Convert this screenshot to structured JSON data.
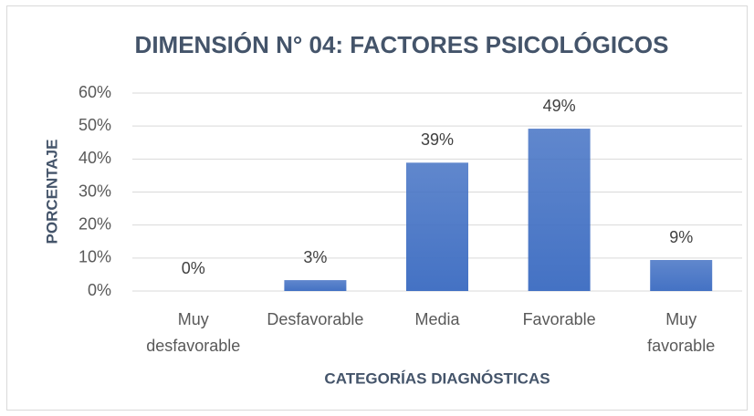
{
  "chart_data": {
    "type": "bar",
    "title": "DIMENSIÓN N° 04: FACTORES PSICOLÓGICOS",
    "x_label": "CATEGORÍAS DIAGNÓSTICAS",
    "y_label": "PORCENTAJE",
    "categories": [
      "Muy desfavorable",
      "Desfavorable",
      "Media",
      "Favorable",
      "Muy favorable"
    ],
    "values": [
      0,
      3.3,
      38.9,
      49.2,
      9.4
    ],
    "value_labels": [
      "0%",
      "3%",
      "39%",
      "49%",
      "9%"
    ],
    "color": "#4472c4",
    "ylim": [
      0,
      60
    ],
    "yticks": [
      {
        "value": 0,
        "label": "0%"
      },
      {
        "value": 10,
        "label": "10%"
      },
      {
        "value": 20,
        "label": "20%"
      },
      {
        "value": 30,
        "label": "30%"
      },
      {
        "value": 40,
        "label": "40%"
      },
      {
        "value": 50,
        "label": "50%"
      },
      {
        "value": 60,
        "label": "60%"
      }
    ],
    "grid": true
  }
}
